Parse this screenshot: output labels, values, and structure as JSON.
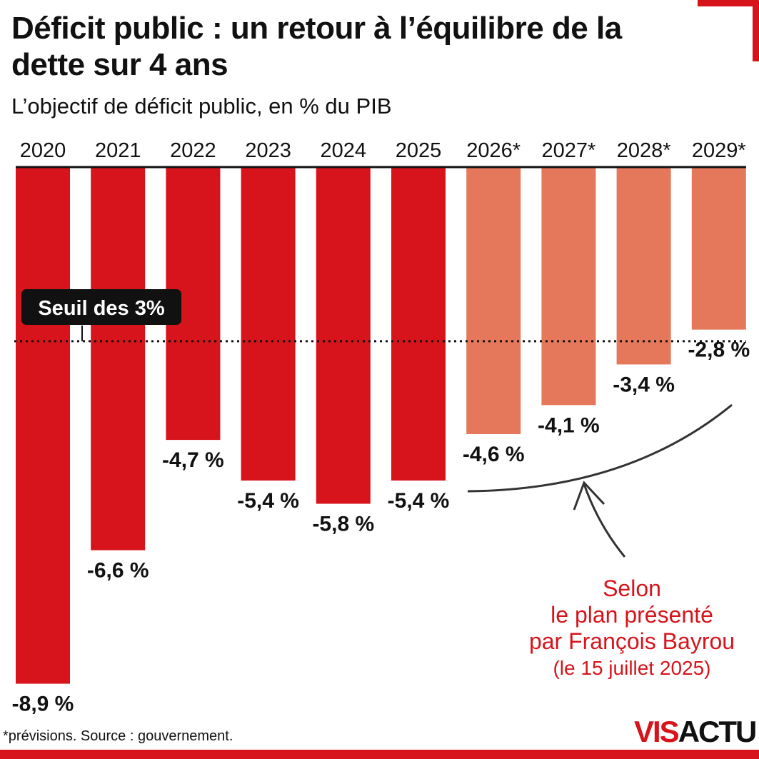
{
  "title": "Déficit public : un retour à l’équilibre de la dette sur 4 ans",
  "subtitle": "L’objectif de déficit public, en % du PIB",
  "source": "*prévisions. Source : gouvernement.",
  "logo": {
    "part1": "VIS",
    "part2": "ACTU"
  },
  "annotation": {
    "line1": "Selon",
    "line2": "le plan présenté",
    "line3": "par François Bayrou",
    "line4": "(le 15 juillet 2025)"
  },
  "colors": {
    "actual": "#d7141b",
    "forecast": "#e5775b",
    "accent": "#d7141b"
  },
  "chart_data": {
    "type": "bar",
    "categories": [
      "2020",
      "2021",
      "2022",
      "2023",
      "2024",
      "2025",
      "2026*",
      "2027*",
      "2028*",
      "2029*"
    ],
    "values": [
      -8.9,
      -6.6,
      -4.7,
      -5.4,
      -5.8,
      -5.4,
      -4.6,
      -4.1,
      -3.4,
      -2.8
    ],
    "value_labels": [
      "-8,9 %",
      "-6,6 %",
      "-4,7 %",
      "-5,4 %",
      "-5,8 %",
      "-5,4 %",
      "-4,6 %",
      "-4,1 %",
      "-3,4 %",
      "-2,8 %"
    ],
    "forecast": [
      false,
      false,
      false,
      false,
      false,
      false,
      true,
      true,
      true,
      true
    ],
    "ylim": [
      -9,
      0
    ],
    "reference_line": {
      "value": -3,
      "label": "Seuil des 3%"
    }
  }
}
